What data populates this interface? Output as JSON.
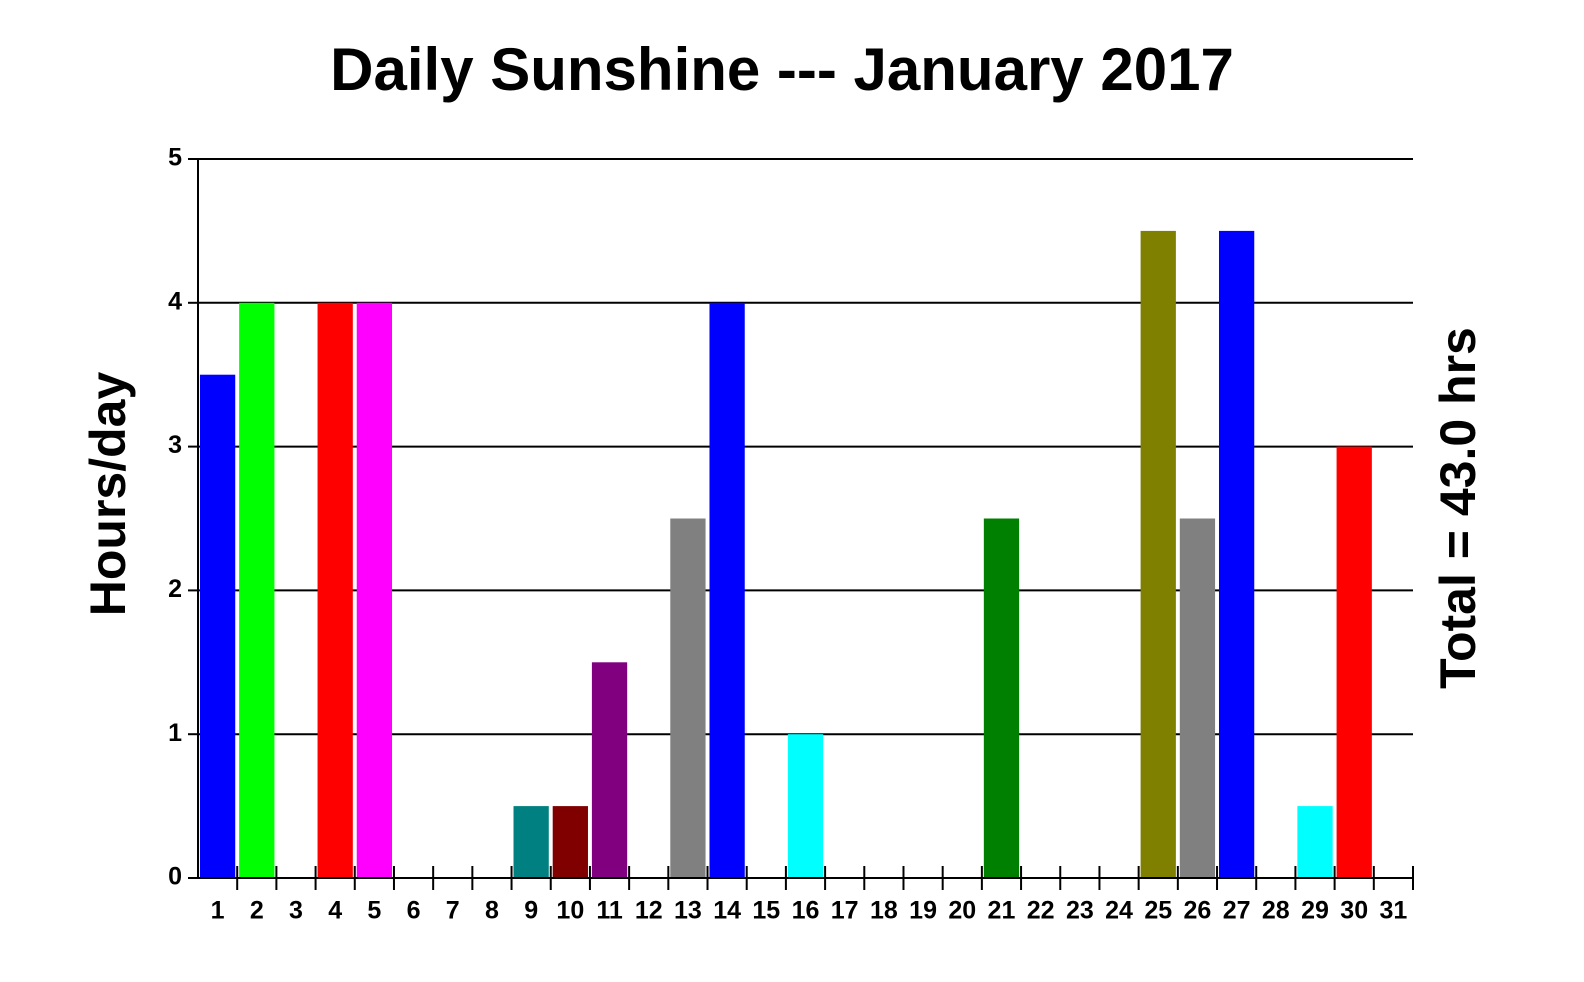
{
  "chart_data": {
    "type": "bar",
    "title": "Daily Sunshine --- January 2017",
    "y_label": "Hours/day",
    "annotation": "Total = 43.0 hrs",
    "categories": [
      "1",
      "2",
      "3",
      "4",
      "5",
      "6",
      "7",
      "8",
      "9",
      "10",
      "11",
      "12",
      "13",
      "14",
      "15",
      "16",
      "17",
      "18",
      "19",
      "20",
      "21",
      "22",
      "23",
      "24",
      "25",
      "26",
      "27",
      "28",
      "29",
      "30",
      "31"
    ],
    "values": [
      3.5,
      4,
      0,
      4,
      4,
      0,
      0,
      0,
      0.5,
      0.5,
      1.5,
      0,
      2.5,
      4,
      0,
      1,
      0,
      0,
      0,
      0,
      2.5,
      0,
      0,
      0,
      4.5,
      2.5,
      4.5,
      0,
      0.5,
      3,
      0
    ],
    "colors": [
      "#0000ff",
      "#00ff00",
      null,
      "#ff0000",
      "#ff00ff",
      null,
      null,
      null,
      "#008080",
      "#800000",
      "#800080",
      null,
      "#808080",
      "#0000ff",
      null,
      "#00ffff",
      null,
      null,
      null,
      null,
      "#008000",
      null,
      null,
      null,
      "#808000",
      "#808080",
      "#0000ff",
      null,
      "#00ffff",
      "#ff0000",
      null
    ],
    "ylim": [
      0,
      5
    ],
    "yticks": [
      0,
      1,
      2,
      3,
      4,
      5
    ],
    "grid": true
  }
}
